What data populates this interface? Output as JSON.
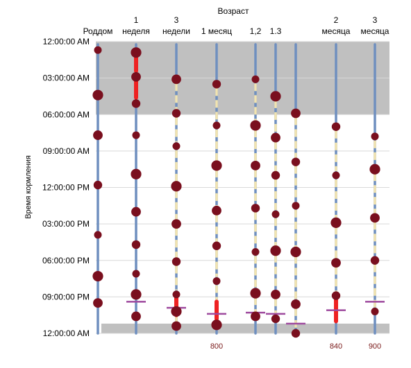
{
  "chart_data": {
    "type": "timeline",
    "title": "",
    "top_label": "Возраст",
    "ylabel": "Время кормления",
    "y_ticks": [
      "12:00:00 AM",
      "03:00:00 AM",
      "06:00:00 AM",
      "09:00:00 AM",
      "12:00:00 PM",
      "03:00:00 PM",
      "06:00:00 PM",
      "09:00:00 PM",
      "12:00:00 AM"
    ],
    "ylim_hours": [
      0,
      24
    ],
    "night_shading_hours": [
      [
        0,
        6
      ],
      [
        23.2,
        24
      ]
    ],
    "colors": {
      "grid": "#d9d9d9",
      "shade": "#c0c0c0",
      "column": "#6f8fbf",
      "awake": "#f2e4b0",
      "feeding": "#7a0f1e",
      "night_wake": "#ee2222",
      "bedtime": "#9e4a9e",
      "footer": "#7a1a1a"
    },
    "columns": [
      {
        "label_line1": "",
        "label_line2": "Роддом",
        "footer": "",
        "feedings_hours": [
          0.7,
          4.4,
          7.7,
          11.8,
          15.9,
          19.3,
          21.5
        ],
        "night_wakes": [],
        "bedtime_hour": null
      },
      {
        "label_line1": "1",
        "label_line2": "неделя",
        "footer": "",
        "feedings_hours": [
          0.9,
          2.9,
          5.1,
          7.7,
          10.9,
          14.0,
          16.7,
          19.1,
          20.8,
          22.6
        ],
        "night_wakes": [
          [
            1.2,
            2.4
          ],
          [
            3.1,
            4.6
          ]
        ],
        "bedtime_hour": 21.4
      },
      {
        "label_line1": "3",
        "label_line2": "недели",
        "footer": "",
        "feedings_hours": [
          3.1,
          5.9,
          8.6,
          11.9,
          15.0,
          18.1,
          20.8,
          22.2,
          23.4
        ],
        "night_wakes": [
          [
            21.0,
            22.5
          ]
        ],
        "bedtime_hour": 21.9
      },
      {
        "label_line1": "",
        "label_line2": "1 месяц",
        "footer": "800",
        "feedings_hours": [
          3.5,
          6.9,
          10.2,
          13.9,
          16.8,
          19.7,
          23.3
        ],
        "night_wakes": [
          [
            21.4,
            22.8
          ]
        ],
        "bedtime_hour": 22.4
      },
      {
        "label_line1": "",
        "label_line2": "1,2",
        "footer": "",
        "feedings_hours": [
          3.1,
          6.9,
          10.2,
          13.7,
          17.3,
          20.7,
          22.6
        ],
        "night_wakes": [],
        "bedtime_hour": 22.3
      },
      {
        "label_line1": "",
        "label_line2": "1.3",
        "footer": "",
        "feedings_hours": [
          4.5,
          7.9,
          11.0,
          14.2,
          17.2,
          20.8,
          22.8
        ],
        "night_wakes": [],
        "bedtime_hour": 22.4
      },
      {
        "label_line1": "",
        "label_line2": "",
        "footer": "",
        "feedings_hours": [
          5.9,
          9.9,
          13.5,
          17.3,
          21.6,
          24.0
        ],
        "night_wakes": [],
        "bedtime_hour": 23.2
      },
      {
        "label_line1": "2",
        "label_line2": "месяца",
        "footer": "840",
        "feedings_hours": [
          7.0,
          11.0,
          14.9,
          18.2,
          20.9
        ],
        "night_wakes": [
          [
            21.2,
            23.0
          ]
        ],
        "bedtime_hour": 22.1
      },
      {
        "label_line1": "3",
        "label_line2": "месяца",
        "footer": "900",
        "feedings_hours": [
          7.8,
          10.5,
          14.5,
          18.0,
          22.2
        ],
        "night_wakes": [],
        "bedtime_hour": 21.4
      }
    ]
  }
}
